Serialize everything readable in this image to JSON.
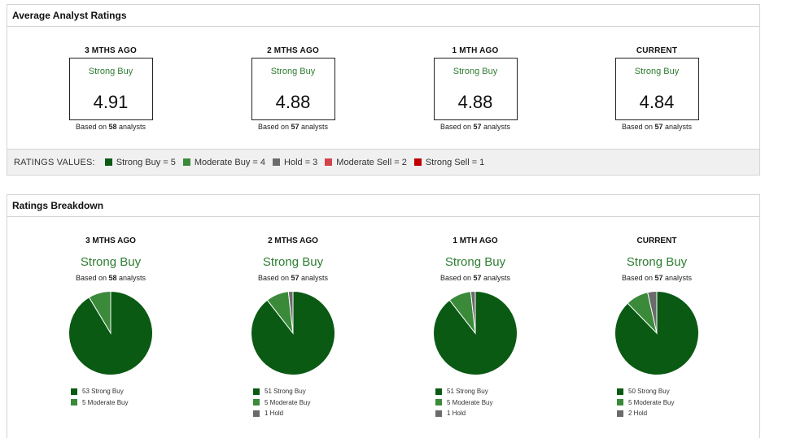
{
  "avg": {
    "title": "Average Analyst Ratings",
    "periods": [
      {
        "head": "3 MTHS AGO",
        "label": "Strong Buy",
        "score": "4.91",
        "based_pre": "Based on",
        "count": "58",
        "based_post": "analysts"
      },
      {
        "head": "2 MTHS AGO",
        "label": "Strong Buy",
        "score": "4.88",
        "based_pre": "Based on",
        "count": "57",
        "based_post": "analysts"
      },
      {
        "head": "1 MTH AGO",
        "label": "Strong Buy",
        "score": "4.88",
        "based_pre": "Based on",
        "count": "57",
        "based_post": "analysts"
      },
      {
        "head": "CURRENT",
        "label": "Strong Buy",
        "score": "4.84",
        "based_pre": "Based on",
        "count": "57",
        "based_post": "analysts"
      }
    ],
    "legend": {
      "title": "RATINGS VALUES:",
      "items": [
        {
          "label": "Strong Buy = 5",
          "color": "#0a5a14"
        },
        {
          "label": "Moderate Buy = 4",
          "color": "#3a8a3a"
        },
        {
          "label": "Hold = 3",
          "color": "#6b6b6b"
        },
        {
          "label": "Moderate Sell = 2",
          "color": "#d4434b"
        },
        {
          "label": "Strong Sell = 1",
          "color": "#c00000"
        }
      ]
    }
  },
  "breakdown": {
    "title": "Ratings Breakdown",
    "periods": [
      {
        "head": "3 MTHS AGO",
        "label": "Strong Buy",
        "based_pre": "Based on",
        "count": "58",
        "based_post": "analysts",
        "legend": [
          "53 Strong Buy",
          "5 Moderate Buy"
        ]
      },
      {
        "head": "2 MTHS AGO",
        "label": "Strong Buy",
        "based_pre": "Based on",
        "count": "57",
        "based_post": "analysts",
        "legend": [
          "51 Strong Buy",
          "5 Moderate Buy",
          "1 Hold"
        ]
      },
      {
        "head": "1 MTH AGO",
        "label": "Strong Buy",
        "based_pre": "Based on",
        "count": "57",
        "based_post": "analysts",
        "legend": [
          "51 Strong Buy",
          "5 Moderate Buy",
          "1 Hold"
        ]
      },
      {
        "head": "CURRENT",
        "label": "Strong Buy",
        "based_pre": "Based on",
        "count": "57",
        "based_post": "analysts",
        "legend": [
          "50 Strong Buy",
          "5 Moderate Buy",
          "2 Hold"
        ]
      }
    ]
  },
  "colors": {
    "strong_buy": "#0a5a14",
    "moderate_buy": "#3a8a3a",
    "hold": "#6b6b6b",
    "accent_text": "#2e7d32"
  },
  "chart_data": [
    {
      "type": "pie",
      "categories": [
        "Strong Buy",
        "Moderate Buy",
        "Hold"
      ],
      "values": [
        53,
        5,
        0
      ]
    },
    {
      "type": "pie",
      "categories": [
        "Strong Buy",
        "Moderate Buy",
        "Hold"
      ],
      "values": [
        51,
        5,
        1
      ]
    },
    {
      "type": "pie",
      "categories": [
        "Strong Buy",
        "Moderate Buy",
        "Hold"
      ],
      "values": [
        51,
        5,
        1
      ]
    },
    {
      "type": "pie",
      "categories": [
        "Strong Buy",
        "Moderate Buy",
        "Hold"
      ],
      "values": [
        50,
        5,
        2
      ]
    }
  ]
}
